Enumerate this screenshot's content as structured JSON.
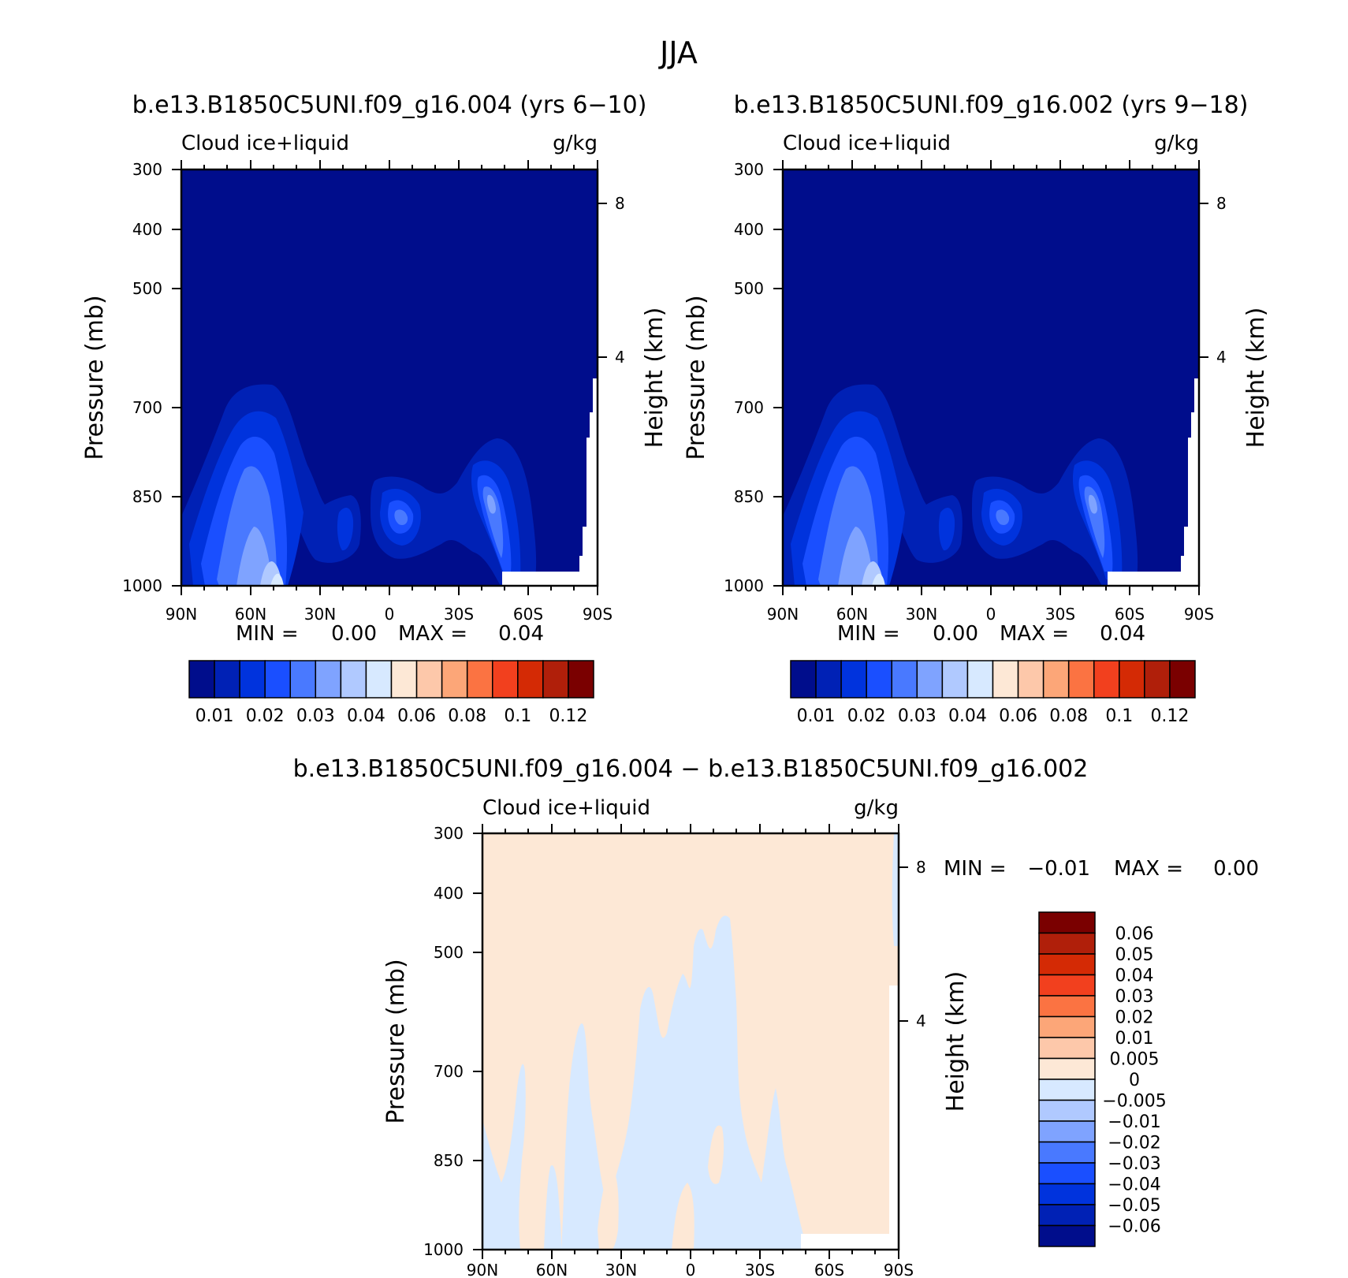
{
  "figure": {
    "title": "JJA"
  },
  "chart_data": [
    {
      "type": "heatmap",
      "name": "panel-left",
      "title": "b.e13.B1850C5UNI.f09_g16.004 (yrs 6−10)",
      "subtitle_left": "Cloud ice+liquid",
      "subtitle_right": "g/kg",
      "ylabel": "Pressure (mb)",
      "ylabel_right": "Height (km)",
      "x_ticks": [
        "90N",
        "60N",
        "30N",
        "0",
        "30S",
        "60S",
        "90S"
      ],
      "y_ticks": [
        "300",
        "400",
        "500",
        "700",
        "850",
        "1000"
      ],
      "y_ticks_right": [
        "8",
        "4"
      ],
      "min_label": "MIN =",
      "min_value": "0.00",
      "max_label": "MAX =",
      "max_value": "0.04",
      "colorbar_labels": [
        "0.01",
        "0.02",
        "0.03",
        "0.04",
        "0.06",
        "0.08",
        "0.1",
        "0.12"
      ],
      "colors": [
        "#000d8c",
        "#0021b5",
        "#0033dd",
        "#1a4fff",
        "#4979ff",
        "#7fa3ff",
        "#b0c9ff",
        "#d7e9ff",
        "#fde8d6",
        "#fdc8aa",
        "#fca678",
        "#fb7342",
        "#f2401e",
        "#d42a05",
        "#b01f0a",
        "#7a0000"
      ]
    },
    {
      "type": "heatmap",
      "name": "panel-right",
      "title": "b.e13.B1850C5UNI.f09_g16.002 (yrs 9−18)",
      "subtitle_left": "Cloud ice+liquid",
      "subtitle_right": "g/kg",
      "ylabel": "Pressure (mb)",
      "ylabel_right": "Height (km)",
      "x_ticks": [
        "90N",
        "60N",
        "30N",
        "0",
        "30S",
        "60S",
        "90S"
      ],
      "y_ticks": [
        "300",
        "400",
        "500",
        "700",
        "850",
        "1000"
      ],
      "y_ticks_right": [
        "8",
        "4"
      ],
      "min_label": "MIN =",
      "min_value": "0.00",
      "max_label": "MAX =",
      "max_value": "0.04",
      "colorbar_labels": [
        "0.01",
        "0.02",
        "0.03",
        "0.04",
        "0.06",
        "0.08",
        "0.1",
        "0.12"
      ],
      "colors": [
        "#000d8c",
        "#0021b5",
        "#0033dd",
        "#1a4fff",
        "#4979ff",
        "#7fa3ff",
        "#b0c9ff",
        "#d7e9ff",
        "#fde8d6",
        "#fdc8aa",
        "#fca678",
        "#fb7342",
        "#f2401e",
        "#d42a05",
        "#b01f0a",
        "#7a0000"
      ]
    },
    {
      "type": "heatmap",
      "name": "panel-diff",
      "title": "b.e13.B1850C5UNI.f09_g16.004 − b.e13.B1850C5UNI.f09_g16.002",
      "subtitle_left": "Cloud ice+liquid",
      "subtitle_right": "g/kg",
      "ylabel": "Pressure (mb)",
      "ylabel_right": "Height (km)",
      "x_ticks": [
        "90N",
        "60N",
        "30N",
        "0",
        "30S",
        "60S",
        "90S"
      ],
      "y_ticks": [
        "300",
        "400",
        "500",
        "700",
        "850",
        "1000"
      ],
      "y_ticks_right": [
        "8",
        "4"
      ],
      "min_label": "MIN =",
      "min_value": "−0.01",
      "max_label": "MAX =",
      "max_value": "0.00",
      "colorbar_labels": [
        "0.06",
        "0.05",
        "0.04",
        "0.03",
        "0.02",
        "0.01",
        "0.005",
        "0",
        "−0.005",
        "−0.01",
        "−0.02",
        "−0.03",
        "−0.04",
        "−0.05",
        "−0.06"
      ],
      "colors": [
        "#7a0000",
        "#b01f0a",
        "#d42a05",
        "#f2401e",
        "#fb7342",
        "#fca678",
        "#fdc8aa",
        "#fde8d6",
        "#d7e9ff",
        "#b0c9ff",
        "#7fa3ff",
        "#4979ff",
        "#1a4fff",
        "#0033dd",
        "#0021b5",
        "#000d8c"
      ]
    }
  ]
}
